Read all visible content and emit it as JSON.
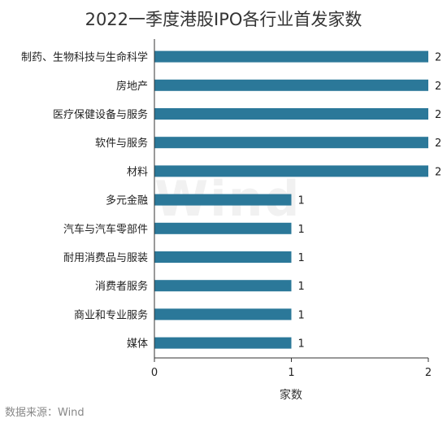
{
  "chart_data": {
    "type": "bar",
    "orientation": "horizontal",
    "title": "2022一季度港股IPO各行业首发家数",
    "xlabel": "家数",
    "ylabel": "",
    "categories": [
      "制药、生物科技与生命科学",
      "房地产",
      "医疗保健设备与服务",
      "软件与服务",
      "材料",
      "多元金融",
      "汽车与汽车零部件",
      "耐用消费品与服装",
      "消费者服务",
      "商业和专业服务",
      "媒体"
    ],
    "values": [
      2,
      2,
      2,
      2,
      2,
      1,
      1,
      1,
      1,
      1,
      1
    ],
    "xlim": [
      0,
      2
    ],
    "xticks": [
      0,
      1,
      2
    ],
    "bar_color": "#2b7899",
    "data_labels": true,
    "grid": false,
    "legend": "none"
  },
  "footer": {
    "source": "数据来源：Wind"
  },
  "watermark": "Wind"
}
